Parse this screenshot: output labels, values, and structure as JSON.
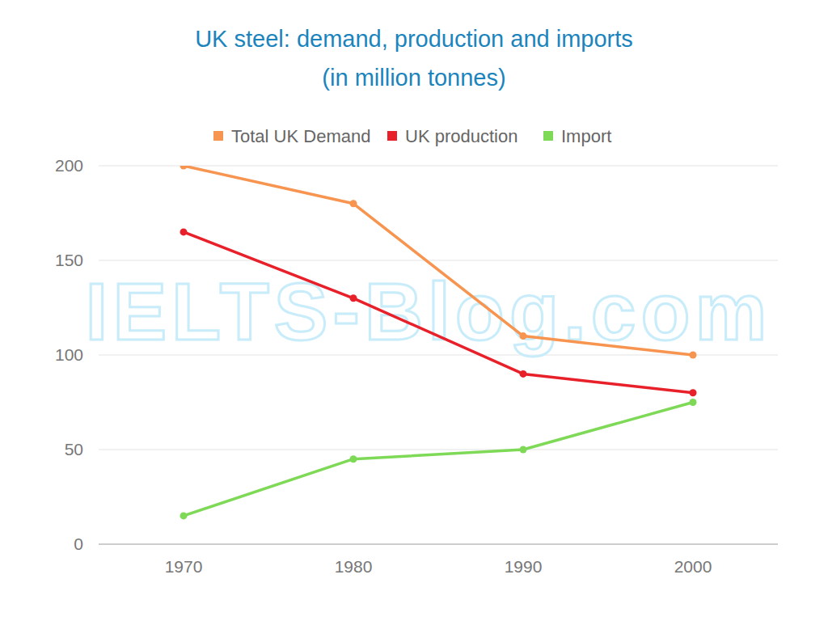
{
  "chart_data": {
    "type": "line",
    "title": "UK steel: demand, production and imports",
    "subtitle": "(in million tonnes)",
    "annotations": [
      "IELTS-Blog.com"
    ],
    "categories": [
      "1970",
      "1980",
      "1990",
      "2000"
    ],
    "series": [
      {
        "name": "Total UK Demand",
        "color": "#f7944f",
        "values": [
          200,
          180,
          110,
          100
        ],
        "marker": "circle"
      },
      {
        "name": "UK production",
        "color": "#e8202a",
        "values": [
          165,
          130,
          90,
          80
        ],
        "marker": "circle"
      },
      {
        "name": "Import",
        "color": "#7ed957",
        "values": [
          15,
          45,
          50,
          75
        ],
        "marker": "circle"
      }
    ],
    "ylim": [
      0,
      200
    ],
    "yticks": [
      0,
      50,
      100,
      150,
      200
    ],
    "grid": true,
    "legend": "top"
  }
}
